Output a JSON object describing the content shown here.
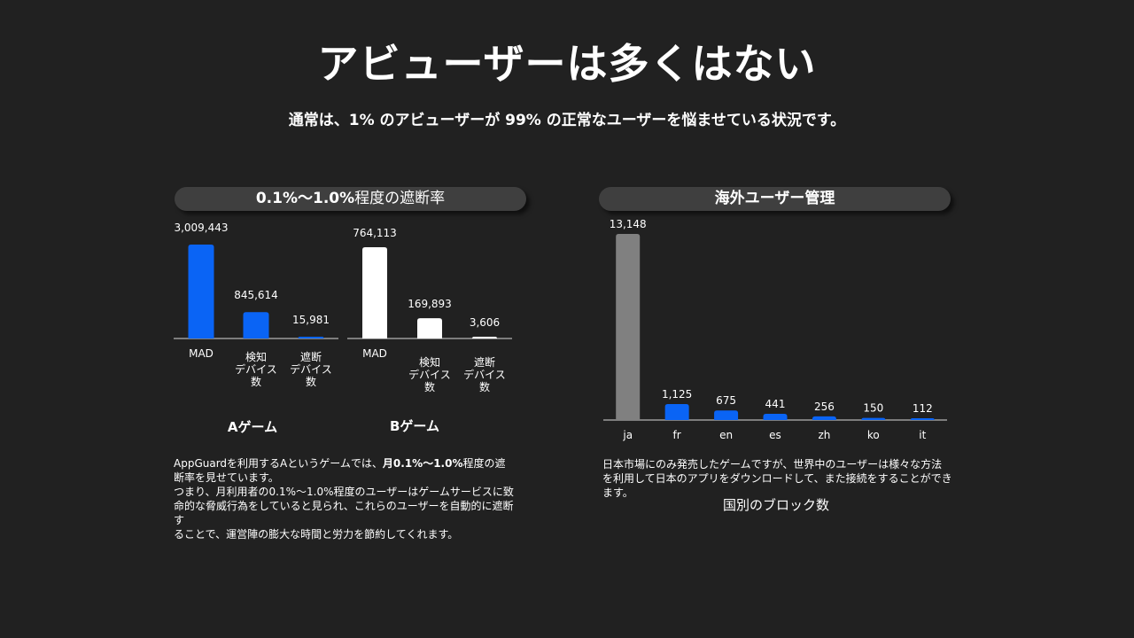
{
  "title": "アビューザーは多くはない",
  "subtitle": "通常は、1% のアビューザーが 99% の正常なユーザーを悩ませている状況です。",
  "left_panel": {
    "heading_bold": "0.1%～1.0%",
    "heading_rest": "程度の遮断率",
    "desc_line1_a": "AppGuardを利用するAというゲームでは、",
    "desc_line1_b": "月0.1%～1.0%",
    "desc_line1_c": "程度の遮",
    "desc_line2": "断率を見せています。",
    "desc_line3": "つまり、月利用者の0.1%～1.0%程度のユーザーはゲームサービスに致",
    "desc_line4": "命的な脅威行為をしていると見られ、これらのユーザーを自動的に遮断す",
    "desc_line5": "ることで、運営陣の膨大な時間と労力を節約してくれます。"
  },
  "right_panel": {
    "heading": "海外ユーザー管理",
    "desc_line1": "日本市場にのみ発売したゲームですが、世界中のユーザーは様々な方法",
    "desc_line2": "を利用して日本のアプリをダウンロードして、また接続をすることができます。",
    "caption": "国別のブロック数"
  },
  "colors": {
    "blue": "#0a64f5",
    "white": "#ffffff",
    "gray": "#808080",
    "background": "#212121"
  },
  "chart_data": [
    {
      "type": "bar",
      "title": "Aゲーム",
      "categories": [
        "MAD",
        "検知\nデバイス\n数",
        "遮断\nデバイス\n数"
      ],
      "values": [
        3009443,
        845614,
        15981
      ],
      "value_labels": [
        "3,009,443",
        "845,614",
        "15,981"
      ],
      "color": "#0a64f5"
    },
    {
      "type": "bar",
      "title": "Bゲーム",
      "categories": [
        "MAD",
        "検知\nデバイス\n数",
        "遮断\nデバイス\n数"
      ],
      "values": [
        764113,
        169893,
        3606
      ],
      "value_labels": [
        "764,113",
        "169,893",
        "3,606"
      ],
      "color": "#ffffff"
    },
    {
      "type": "bar",
      "title": "国別のブロック数",
      "categories": [
        "ja",
        "fr",
        "en",
        "es",
        "zh",
        "ko",
        "it"
      ],
      "values": [
        13148,
        1125,
        675,
        441,
        256,
        150,
        112
      ],
      "value_labels": [
        "13,148",
        "1,125",
        "675",
        "441",
        "256",
        "150",
        "112"
      ],
      "colors": [
        "#808080",
        "#0a64f5",
        "#0a64f5",
        "#0a64f5",
        "#0a64f5",
        "#0a64f5",
        "#0a64f5"
      ]
    }
  ]
}
